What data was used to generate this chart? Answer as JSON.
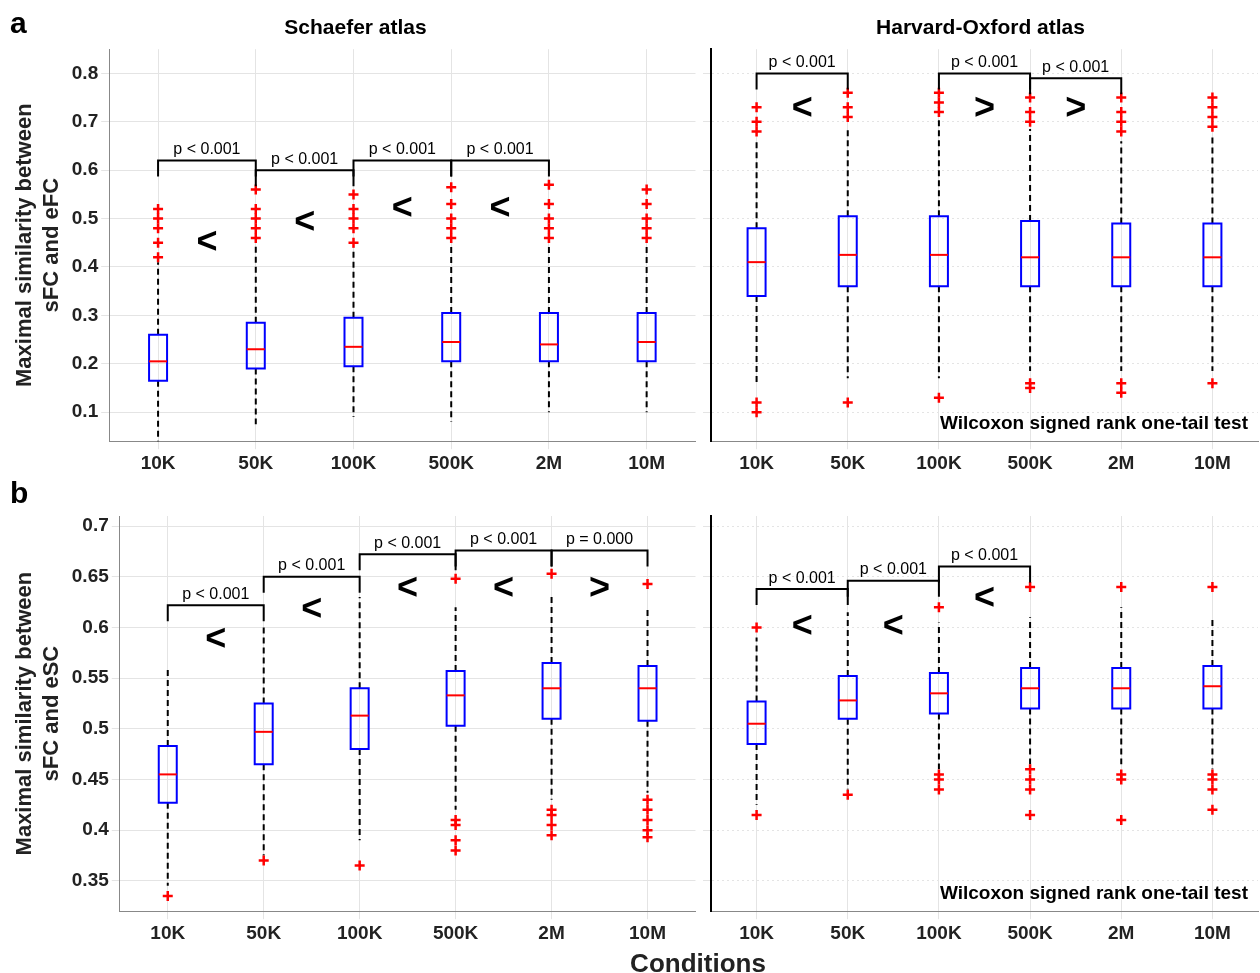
{
  "chart_data": [
    {
      "type": "box",
      "title": "Schaefer atlas",
      "ylabel": "Maximal similarity between sFC and eFC",
      "categories": [
        "10K",
        "50K",
        "100K",
        "500K",
        "2M",
        "10M"
      ],
      "ylim": [
        0.04,
        0.85
      ],
      "yticks": [
        0.1,
        0.2,
        0.3,
        0.4,
        0.5,
        0.6,
        0.7,
        0.8
      ],
      "grid": true,
      "series": [
        {
          "color": "#0000ff",
          "boxes": [
            {
              "low": 0.04,
              "q1": 0.165,
              "median": 0.205,
              "q3": 0.26,
              "high": 0.41,
              "outliers": [
                0.42,
                0.45,
                0.48,
                0.5,
                0.52
              ]
            },
            {
              "low": 0.075,
              "q1": 0.19,
              "median": 0.23,
              "q3": 0.285,
              "high": 0.445,
              "outliers": [
                0.46,
                0.48,
                0.5,
                0.52,
                0.56
              ]
            },
            {
              "low": 0.09,
              "q1": 0.195,
              "median": 0.235,
              "q3": 0.295,
              "high": 0.44,
              "outliers": [
                0.45,
                0.48,
                0.5,
                0.52,
                0.55
              ]
            },
            {
              "low": 0.08,
              "q1": 0.205,
              "median": 0.245,
              "q3": 0.305,
              "high": 0.45,
              "outliers": [
                0.46,
                0.48,
                0.5,
                0.53,
                0.565
              ]
            },
            {
              "low": 0.1,
              "q1": 0.205,
              "median": 0.24,
              "q3": 0.305,
              "high": 0.45,
              "outliers": [
                0.46,
                0.48,
                0.5,
                0.53,
                0.57
              ]
            },
            {
              "low": 0.1,
              "q1": 0.205,
              "median": 0.245,
              "q3": 0.305,
              "high": 0.45,
              "outliers": [
                0.46,
                0.48,
                0.5,
                0.53,
                0.56
              ]
            }
          ]
        }
      ],
      "annotations": [
        "a",
        "p < 0.001",
        "p < 0.001",
        "p < 0.001",
        "p < 0.001",
        "<",
        "<",
        "<",
        "<"
      ]
    },
    {
      "type": "box",
      "title": "Harvard-Oxford atlas",
      "categories": [
        "10K",
        "50K",
        "100K",
        "500K",
        "2M",
        "10M"
      ],
      "ylim": [
        0.04,
        0.85
      ],
      "yticks": [
        0.1,
        0.2,
        0.3,
        0.4,
        0.5,
        0.6,
        0.7,
        0.8
      ],
      "grid": true,
      "tick_labels": "x",
      "series": [
        {
          "color": "#0000ff",
          "boxes": [
            {
              "low": 0.16,
              "q1": 0.34,
              "median": 0.41,
              "q3": 0.48,
              "high": 0.66,
              "outliers": [
                0.1,
                0.12,
                0.68,
                0.7,
                0.73
              ]
            },
            {
              "low": 0.17,
              "q1": 0.36,
              "median": 0.425,
              "q3": 0.505,
              "high": 0.69,
              "outliers": [
                0.12,
                0.71,
                0.73,
                0.76
              ]
            },
            {
              "low": 0.17,
              "q1": 0.36,
              "median": 0.425,
              "q3": 0.505,
              "high": 0.71,
              "outliers": [
                0.13,
                0.72,
                0.74,
                0.76
              ]
            },
            {
              "low": 0.185,
              "q1": 0.36,
              "median": 0.42,
              "q3": 0.495,
              "high": 0.685,
              "outliers": [
                0.15,
                0.16,
                0.7,
                0.72,
                0.75
              ]
            },
            {
              "low": 0.185,
              "q1": 0.36,
              "median": 0.42,
              "q3": 0.49,
              "high": 0.66,
              "outliers": [
                0.14,
                0.16,
                0.68,
                0.7,
                0.72,
                0.75
              ]
            },
            {
              "low": 0.185,
              "q1": 0.36,
              "median": 0.42,
              "q3": 0.49,
              "high": 0.67,
              "outliers": [
                0.16,
                0.69,
                0.71,
                0.73,
                0.75
              ]
            }
          ]
        }
      ],
      "annotations": [
        "Wilcoxon signed rank one-tail test",
        "p < 0.001",
        "p < 0.001",
        "p < 0.001",
        "<",
        ">",
        ">"
      ]
    },
    {
      "type": "box",
      "ylabel": "Maximal similarity between sFC and eSC",
      "xlabel": "Conditions",
      "categories": [
        "10K",
        "50K",
        "100K",
        "500K",
        "2M",
        "10M"
      ],
      "ylim": [
        0.32,
        0.71
      ],
      "yticks": [
        0.35,
        0.4,
        0.45,
        0.5,
        0.55,
        0.6,
        0.65,
        0.7
      ],
      "grid": true,
      "series": [
        {
          "color": "#0000ff",
          "boxes": [
            {
              "low": 0.345,
              "q1": 0.427,
              "median": 0.455,
              "q3": 0.483,
              "high": 0.56,
              "outliers": [
                0.335
              ]
            },
            {
              "low": 0.375,
              "q1": 0.465,
              "median": 0.497,
              "q3": 0.525,
              "high": 0.6,
              "outliers": [
                0.37
              ]
            },
            {
              "low": 0.39,
              "q1": 0.48,
              "median": 0.513,
              "q3": 0.54,
              "high": 0.63,
              "outliers": [
                0.365
              ]
            },
            {
              "low": 0.42,
              "q1": 0.503,
              "median": 0.533,
              "q3": 0.557,
              "high": 0.62,
              "outliers": [
                0.38,
                0.39,
                0.405,
                0.41,
                0.648
              ]
            },
            {
              "low": 0.43,
              "q1": 0.51,
              "median": 0.54,
              "q3": 0.565,
              "high": 0.63,
              "outliers": [
                0.395,
                0.405,
                0.415,
                0.42,
                0.653
              ]
            },
            {
              "low": 0.437,
              "q1": 0.508,
              "median": 0.54,
              "q3": 0.562,
              "high": 0.618,
              "outliers": [
                0.393,
                0.4,
                0.41,
                0.42,
                0.43,
                0.643
              ]
            }
          ]
        }
      ],
      "annotations": [
        "b",
        "p < 0.001",
        "p < 0.001",
        "p < 0.001",
        "p < 0.001",
        "p = 0.000",
        "<",
        "<",
        "<",
        "<",
        ">"
      ]
    },
    {
      "type": "box",
      "categories": [
        "10K",
        "50K",
        "100K",
        "500K",
        "2M",
        "10M"
      ],
      "ylim": [
        0.32,
        0.71
      ],
      "yticks": [
        0.35,
        0.4,
        0.45,
        0.5,
        0.55,
        0.6,
        0.65,
        0.7
      ],
      "grid": true,
      "tick_labels": "x",
      "series": [
        {
          "color": "#0000ff",
          "boxes": [
            {
              "low": 0.425,
              "q1": 0.485,
              "median": 0.505,
              "q3": 0.527,
              "high": 0.59,
              "outliers": [
                0.415,
                0.6
              ]
            },
            {
              "low": 0.44,
              "q1": 0.51,
              "median": 0.528,
              "q3": 0.552,
              "high": 0.615,
              "outliers": [
                0.435
              ]
            },
            {
              "low": 0.46,
              "q1": 0.515,
              "median": 0.535,
              "q3": 0.555,
              "high": 0.605,
              "outliers": [
                0.44,
                0.45,
                0.455,
                0.62
              ]
            },
            {
              "low": 0.465,
              "q1": 0.52,
              "median": 0.54,
              "q3": 0.56,
              "high": 0.61,
              "outliers": [
                0.415,
                0.44,
                0.45,
                0.46,
                0.64
              ]
            },
            {
              "low": 0.465,
              "q1": 0.52,
              "median": 0.54,
              "q3": 0.56,
              "high": 0.62,
              "outliers": [
                0.41,
                0.45,
                0.455,
                0.64
              ]
            },
            {
              "low": 0.46,
              "q1": 0.52,
              "median": 0.542,
              "q3": 0.562,
              "high": 0.61,
              "outliers": [
                0.42,
                0.44,
                0.45,
                0.455,
                0.64
              ]
            }
          ]
        }
      ],
      "annotations": [
        "Wilcoxon signed rank one-tail test",
        "p < 0.001",
        "p < 0.001",
        "p < 0.001",
        "<",
        "<",
        "<"
      ]
    }
  ]
}
